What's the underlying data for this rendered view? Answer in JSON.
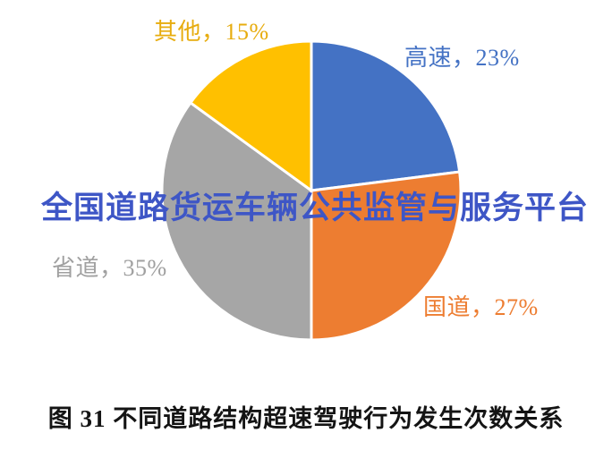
{
  "chart_data": {
    "type": "pie",
    "title": "图 31 不同道路结构超速驾驶行为发生次数关系",
    "start_angle_deg": 0,
    "direction": "clockwise",
    "legend_position": "none",
    "labels_outside": true,
    "separator_color": "#ffffff",
    "slices": [
      {
        "id": "gaosu",
        "label": "高速",
        "value": 23,
        "display": "高速，23%",
        "color": "#4472C4",
        "label_color": "#4472C4"
      },
      {
        "id": "guodao",
        "label": "国道",
        "value": 27,
        "display": "国道，27%",
        "color": "#ED7D31",
        "label_color": "#ED7D31"
      },
      {
        "id": "shengdao",
        "label": "省道",
        "value": 35,
        "display": "省道，35%",
        "color": "#A6A6A6",
        "label_color": "#A0A0A0"
      },
      {
        "id": "qita",
        "label": "其他",
        "value": 15,
        "display": "其他，15%",
        "color": "#FFC000",
        "label_color": "#E7AC0E"
      }
    ]
  },
  "watermark": {
    "text": "全国道路货运车辆公共监管与服务平台",
    "color": "#3E56C6"
  },
  "caption": {
    "text": "图 31 不同道路结构超速驾驶行为发生次数关系"
  }
}
